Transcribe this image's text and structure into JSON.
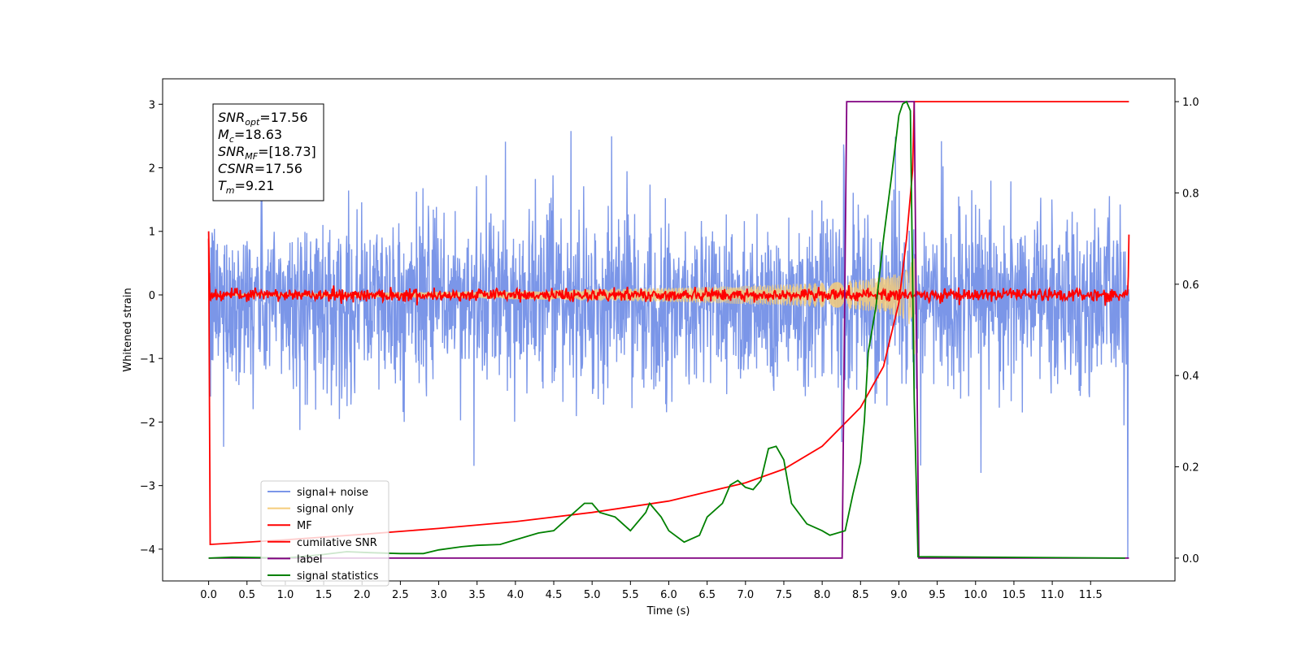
{
  "chart_data": {
    "type": "line",
    "xlabel": "Time (s)",
    "ylabel": "Whitened strain",
    "xlim": [
      -0.6,
      12.6
    ],
    "ylim_left": [
      -4.5,
      3.4
    ],
    "ylim_right": [
      -0.05,
      1.05
    ],
    "x_ticks": [
      "0.0",
      "0.5",
      "1.0",
      "1.5",
      "2.0",
      "2.5",
      "3.0",
      "3.5",
      "4.0",
      "4.5",
      "5.0",
      "5.5",
      "6.0",
      "6.5",
      "7.0",
      "7.5",
      "8.0",
      "8.5",
      "9.0",
      "9.5",
      "10.0",
      "10.5",
      "11.0",
      "11.5"
    ],
    "y_ticks_left": [
      "3",
      "2",
      "1",
      "0",
      "−1",
      "−2",
      "−3",
      "−4"
    ],
    "y_ticks_right": [
      "1.0",
      "0.8",
      "0.6",
      "0.4",
      "0.2",
      "0.0"
    ],
    "info_box": [
      {
        "var": "SNR",
        "sub": "opt",
        "value": "=17.56"
      },
      {
        "var": "M",
        "sub": "c",
        "value": "=18.63"
      },
      {
        "var": "SNR",
        "sub": "MF",
        "value": "=[18.73]"
      },
      {
        "var": "CSNR",
        "sub": "",
        "value": "=17.56"
      },
      {
        "var": "T",
        "sub": "m",
        "value": "=9.21"
      }
    ],
    "legend_position": "lower-left",
    "series": [
      {
        "name": "signal+ noise",
        "color": "#7b96e8",
        "axis": "left",
        "kind": "noise",
        "x_range": [
          0.0,
          12.0
        ],
        "amplitude": 1.2,
        "note_range": [
          -2.8,
          3.05
        ]
      },
      {
        "name": "signal only",
        "color": "#f5cc7a",
        "axis": "left",
        "kind": "chirp",
        "x_range": [
          0.0,
          9.21
        ],
        "peak_amplitude": 1.05
      },
      {
        "name": "MF",
        "color": "#ff0000",
        "axis": "left",
        "kind": "mf",
        "x_range": [
          0.0,
          12.0
        ],
        "amplitude": 0.05
      },
      {
        "name": "cumilative SNR",
        "color": "#ff0000",
        "axis": "right",
        "points": [
          [
            0.0,
            0.7
          ],
          [
            0.02,
            0.03
          ],
          [
            1.0,
            0.04
          ],
          [
            2.0,
            0.052
          ],
          [
            3.0,
            0.065
          ],
          [
            4.0,
            0.08
          ],
          [
            5.0,
            0.1
          ],
          [
            6.0,
            0.125
          ],
          [
            7.0,
            0.165
          ],
          [
            7.5,
            0.195
          ],
          [
            8.0,
            0.245
          ],
          [
            8.5,
            0.33
          ],
          [
            8.8,
            0.42
          ],
          [
            9.0,
            0.56
          ],
          [
            9.1,
            0.7
          ],
          [
            9.18,
            0.85
          ],
          [
            9.2,
            1.0
          ],
          [
            12.0,
            1.0
          ]
        ]
      },
      {
        "name": "label",
        "color": "#800080",
        "axis": "right",
        "points": [
          [
            0.0,
            0.0
          ],
          [
            8.26,
            0.0
          ],
          [
            8.32,
            1.0
          ],
          [
            9.2,
            1.0
          ],
          [
            9.26,
            0.0
          ],
          [
            12.0,
            0.0
          ]
        ]
      },
      {
        "name": "signal statistics",
        "color": "#008000",
        "axis": "right",
        "points": [
          [
            0.0,
            0.0
          ],
          [
            0.3,
            0.002
          ],
          [
            0.7,
            0.001
          ],
          [
            1.0,
            0.0
          ],
          [
            1.5,
            0.008
          ],
          [
            1.8,
            0.014
          ],
          [
            2.1,
            0.012
          ],
          [
            2.5,
            0.01
          ],
          [
            2.8,
            0.01
          ],
          [
            3.0,
            0.018
          ],
          [
            3.3,
            0.025
          ],
          [
            3.5,
            0.028
          ],
          [
            3.8,
            0.03
          ],
          [
            4.0,
            0.04
          ],
          [
            4.3,
            0.055
          ],
          [
            4.5,
            0.06
          ],
          [
            4.7,
            0.09
          ],
          [
            4.9,
            0.12
          ],
          [
            5.0,
            0.12
          ],
          [
            5.1,
            0.1
          ],
          [
            5.3,
            0.09
          ],
          [
            5.5,
            0.06
          ],
          [
            5.7,
            0.1
          ],
          [
            5.75,
            0.12
          ],
          [
            5.9,
            0.09
          ],
          [
            6.0,
            0.06
          ],
          [
            6.2,
            0.035
          ],
          [
            6.4,
            0.05
          ],
          [
            6.5,
            0.09
          ],
          [
            6.7,
            0.12
          ],
          [
            6.8,
            0.16
          ],
          [
            6.9,
            0.17
          ],
          [
            7.0,
            0.155
          ],
          [
            7.1,
            0.15
          ],
          [
            7.2,
            0.17
          ],
          [
            7.3,
            0.24
          ],
          [
            7.4,
            0.245
          ],
          [
            7.5,
            0.215
          ],
          [
            7.6,
            0.12
          ],
          [
            7.8,
            0.075
          ],
          [
            8.0,
            0.06
          ],
          [
            8.1,
            0.05
          ],
          [
            8.3,
            0.06
          ],
          [
            8.4,
            0.14
          ],
          [
            8.5,
            0.21
          ],
          [
            8.55,
            0.3
          ],
          [
            8.6,
            0.45
          ],
          [
            8.7,
            0.55
          ],
          [
            8.8,
            0.7
          ],
          [
            8.9,
            0.83
          ],
          [
            9.0,
            0.97
          ],
          [
            9.05,
            0.995
          ],
          [
            9.1,
            1.0
          ],
          [
            9.15,
            0.98
          ],
          [
            9.2,
            0.35
          ],
          [
            9.25,
            0.003
          ],
          [
            11.95,
            0.0
          ]
        ]
      }
    ]
  }
}
